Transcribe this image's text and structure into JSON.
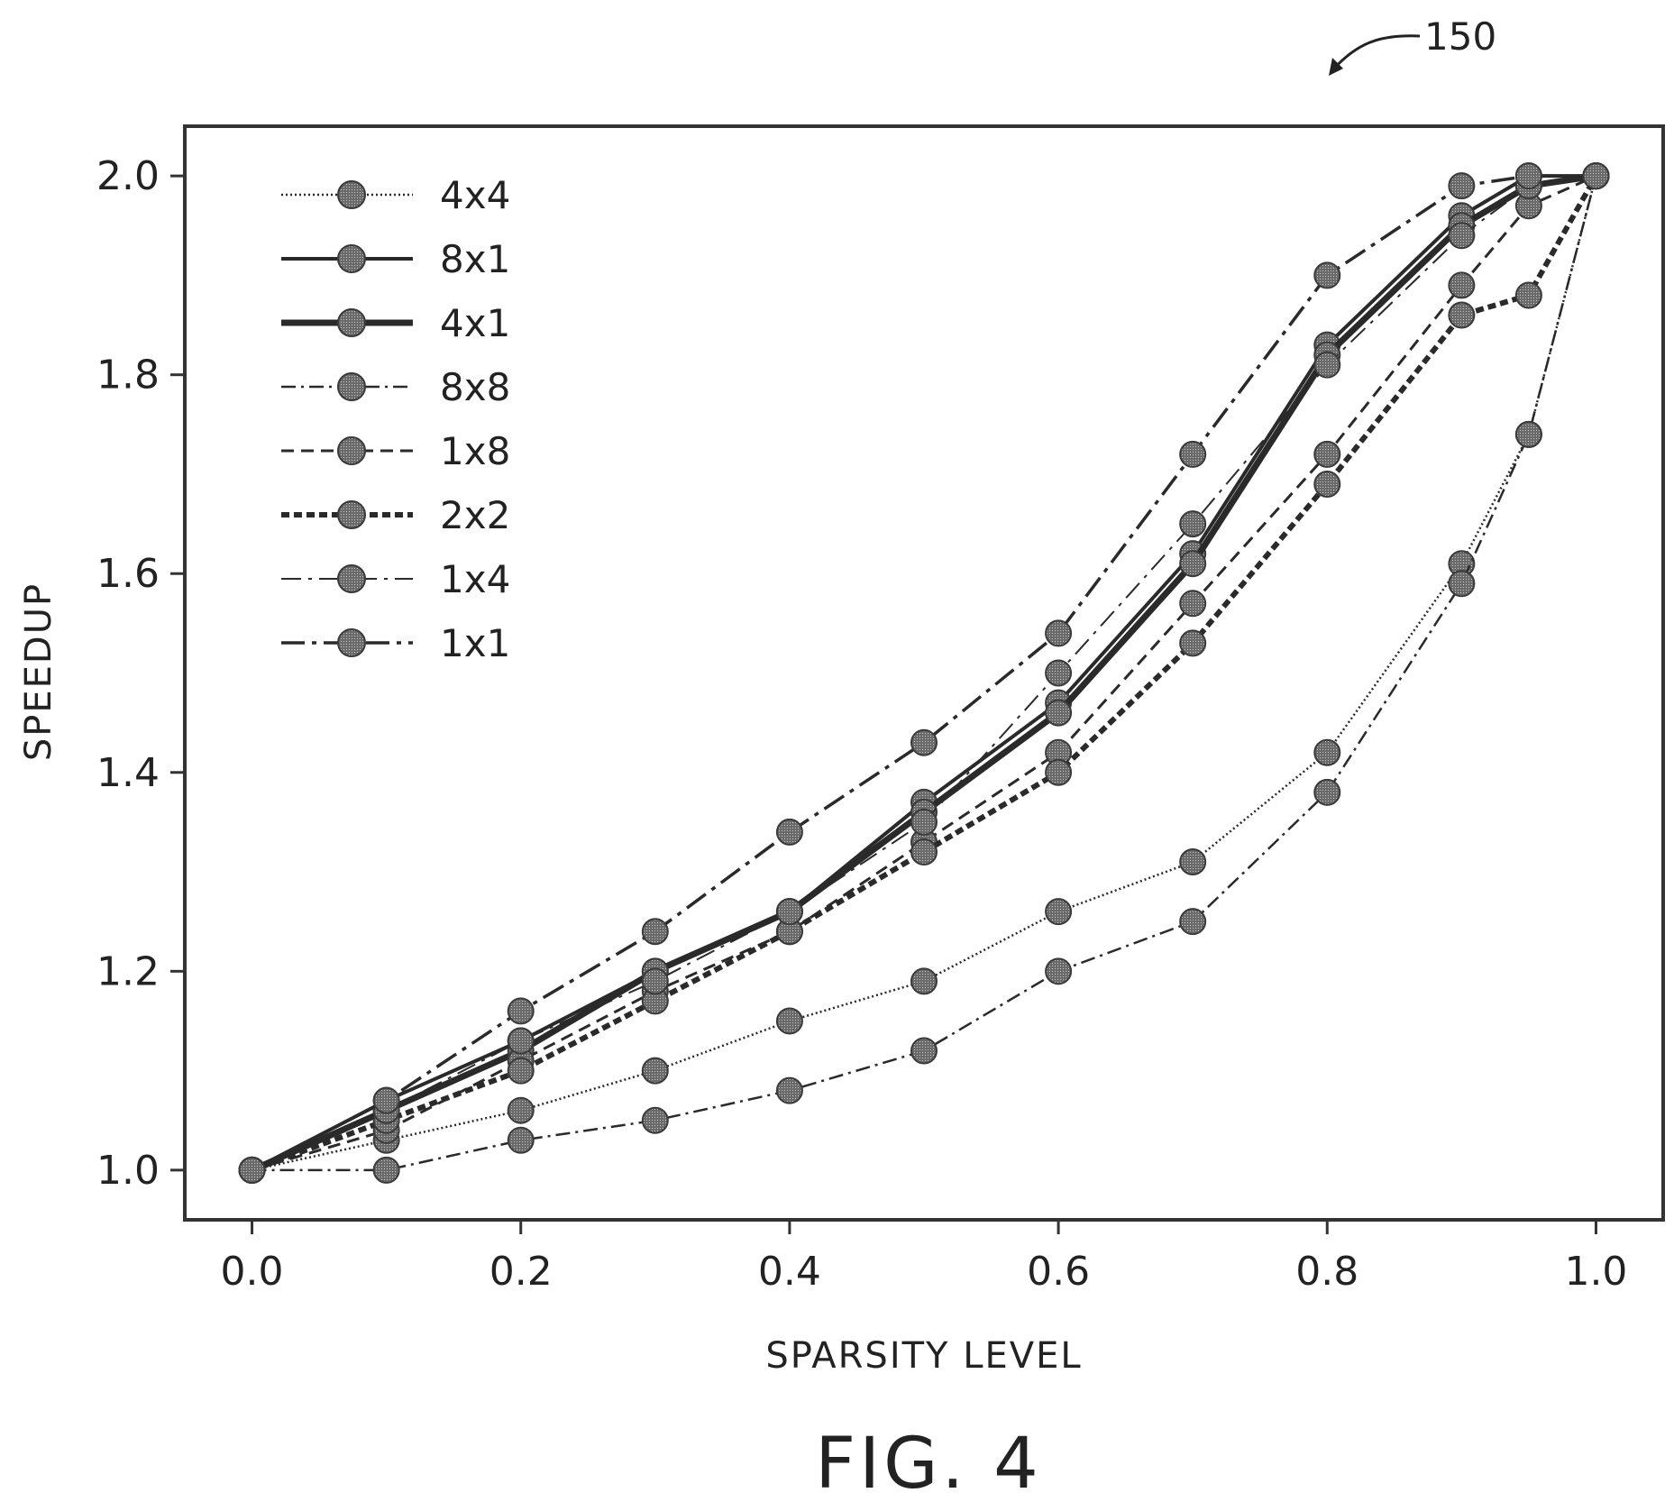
{
  "reference_numeral": "150",
  "figure_label": "FIG. 4",
  "colors": {
    "ink": "#222222",
    "marker": "#555555"
  },
  "chart_data": {
    "type": "line",
    "xlabel": "SPARSITY LEVEL",
    "ylabel": "SPEEDUP",
    "xlim": [
      -0.05,
      1.05
    ],
    "ylim": [
      0.95,
      2.05
    ],
    "xticks": [
      "0.0",
      "0.2",
      "0.4",
      "0.6",
      "0.8",
      "1.0"
    ],
    "yticks": [
      "1.0",
      "1.2",
      "1.4",
      "1.6",
      "1.8",
      "2.0"
    ],
    "legend_position": "top-left",
    "grid": false,
    "x": [
      0.0,
      0.1,
      0.2,
      0.3,
      0.4,
      0.5,
      0.6,
      0.7,
      0.8,
      0.9,
      0.95,
      1.0
    ],
    "series": [
      {
        "name": "4x4",
        "style": "dotted-thin",
        "values": [
          1.0,
          1.03,
          1.06,
          1.1,
          1.15,
          1.19,
          1.26,
          1.31,
          1.42,
          1.61,
          1.74,
          2.0
        ]
      },
      {
        "name": "8x1",
        "style": "solid",
        "values": [
          1.0,
          1.07,
          1.13,
          1.2,
          1.26,
          1.37,
          1.47,
          1.62,
          1.83,
          1.96,
          2.0,
          2.0
        ]
      },
      {
        "name": "4x1",
        "style": "solid-thick",
        "values": [
          1.0,
          1.06,
          1.12,
          1.2,
          1.26,
          1.36,
          1.46,
          1.61,
          1.82,
          1.95,
          1.99,
          2.0
        ]
      },
      {
        "name": "8x8",
        "style": "dashdot",
        "values": [
          1.0,
          1.0,
          1.03,
          1.05,
          1.08,
          1.12,
          1.2,
          1.25,
          1.38,
          1.59,
          1.74,
          2.0
        ]
      },
      {
        "name": "1x8",
        "style": "dashed",
        "values": [
          1.0,
          1.04,
          1.11,
          1.18,
          1.24,
          1.33,
          1.42,
          1.57,
          1.72,
          1.89,
          1.97,
          2.0
        ]
      },
      {
        "name": "2x2",
        "style": "dashed-thick",
        "values": [
          1.0,
          1.05,
          1.1,
          1.17,
          1.24,
          1.32,
          1.4,
          1.53,
          1.69,
          1.86,
          1.88,
          2.0
        ]
      },
      {
        "name": "1x4",
        "style": "dashdot-light",
        "values": [
          1.0,
          1.06,
          1.13,
          1.19,
          1.26,
          1.35,
          1.5,
          1.65,
          1.81,
          1.94,
          1.99,
          2.0
        ]
      },
      {
        "name": "1x1",
        "style": "dashdot-long",
        "values": [
          1.0,
          1.07,
          1.16,
          1.24,
          1.34,
          1.43,
          1.54,
          1.72,
          1.9,
          1.99,
          2.0,
          2.0
        ]
      }
    ]
  }
}
